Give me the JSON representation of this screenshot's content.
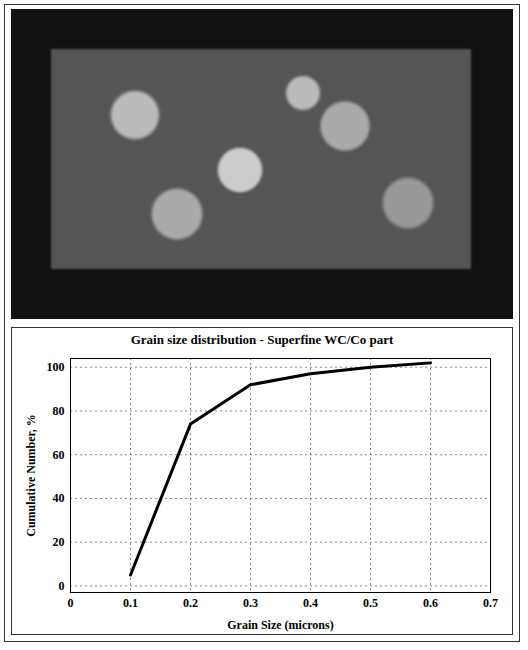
{
  "chart_data": {
    "type": "line",
    "title": "Grain size distribution - Superfine WC/Co part",
    "x_label": "Grain Size (microns)",
    "y_label": "Cumulative Number, %",
    "x": [
      0.1,
      0.2,
      0.3,
      0.4,
      0.5,
      0.6
    ],
    "values": [
      5,
      74,
      92,
      97,
      100,
      102
    ],
    "color": "#000000",
    "xlim": [
      0,
      0.7
    ],
    "xticks": [
      0,
      0.1,
      0.2,
      0.3,
      0.4,
      0.5,
      0.6,
      0.7
    ],
    "ylim": [
      -3,
      104
    ],
    "yticks": [
      0,
      20,
      40,
      60,
      80,
      100
    ],
    "grid": true
  }
}
